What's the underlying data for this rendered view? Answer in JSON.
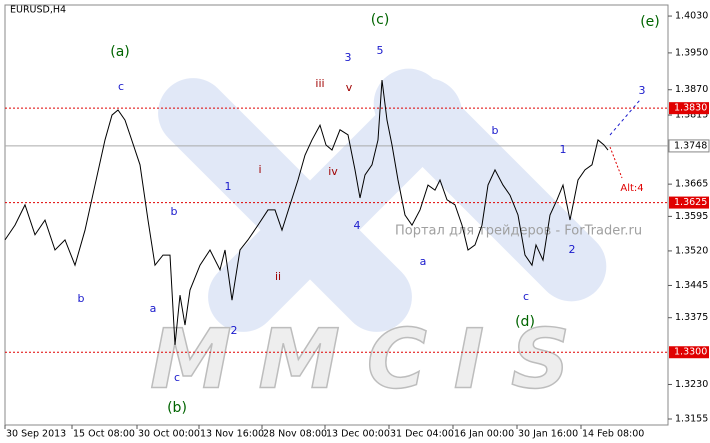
{
  "chart_data": {
    "type": "line",
    "symbol": "EURUSD,H4",
    "series": [
      {
        "color": "#000000",
        "x": [
          0,
          2,
          4,
          6,
          8,
          10,
          12,
          14,
          16,
          18,
          20,
          21.4,
          22.6,
          24,
          25,
          27,
          28.6,
          30,
          31.6,
          33,
          34,
          35,
          36,
          37,
          39,
          41,
          43,
          44,
          45.4,
          47,
          48.6,
          50.6,
          52.6,
          54,
          55.4,
          57,
          58.6,
          60,
          61.4,
          63,
          64.2,
          65.4,
          67,
          68.6,
          70,
          71,
          72,
          73.4,
          74.6,
          75.4,
          76.4,
          77.4,
          78.6,
          80,
          81.4,
          83,
          84.6,
          86,
          87,
          88.4,
          90,
          91.4,
          92.6,
          94,
          95.4,
          96.6,
          98,
          99.6,
          101,
          102.6,
          104,
          105.4,
          106.2,
          107.6,
          109,
          110.4,
          111.6,
          113,
          114.6,
          116,
          117.4,
          118.6,
          119.8,
          120.6
        ],
        "values": [
          1.3544,
          1.3576,
          1.362,
          1.3555,
          1.3587,
          1.3522,
          1.3544,
          1.3489,
          1.3565,
          1.3663,
          1.3761,
          1.3815,
          1.3826,
          1.3804,
          1.3772,
          1.3707,
          1.3587,
          1.3489,
          1.3511,
          1.3511,
          1.3316,
          1.3424,
          1.3359,
          1.3435,
          1.3489,
          1.3522,
          1.3479,
          1.3522,
          1.3413,
          1.3522,
          1.3544,
          1.3576,
          1.3609,
          1.3609,
          1.3565,
          1.362,
          1.3674,
          1.3728,
          1.3761,
          1.3793,
          1.375,
          1.3739,
          1.3783,
          1.3772,
          1.3696,
          1.3635,
          1.3685,
          1.3707,
          1.3761,
          1.3891,
          1.3804,
          1.375,
          1.3674,
          1.3598,
          1.3576,
          1.3609,
          1.3663,
          1.3652,
          1.3674,
          1.3631,
          1.362,
          1.3576,
          1.3522,
          1.3533,
          1.3576,
          1.3663,
          1.3696,
          1.3663,
          1.3641,
          1.3598,
          1.3511,
          1.3489,
          1.3533,
          1.35,
          1.3598,
          1.3631,
          1.3663,
          1.3587,
          1.3674,
          1.3696,
          1.3707,
          1.3761,
          1.375,
          1.3739
        ]
      }
    ],
    "xlim": [
      0,
      132.6
    ],
    "ylim": [
      1.3142,
      1.4054
    ],
    "xticks": [
      {
        "value": 0,
        "label": "30 Sep 2013"
      },
      {
        "value": 13.4,
        "label": "15 Oct 08:00"
      },
      {
        "value": 26.4,
        "label": "30 Oct 00:00"
      },
      {
        "value": 38.8,
        "label": "13 Nov 16:00"
      },
      {
        "value": 51.4,
        "label": "28 Nov 08:00"
      },
      {
        "value": 64,
        "label": "13 Dec 00:00"
      },
      {
        "value": 76.8,
        "label": "31 Dec 04:00"
      },
      {
        "value": 89.6,
        "label": "16 Jan 00:00"
      },
      {
        "value": 102.4,
        "label": "30 Jan 16:00"
      },
      {
        "value": 115.2,
        "label": "14 Feb 08:00"
      }
    ],
    "yticks": [
      {
        "value": 1.403,
        "label": "1.4030"
      },
      {
        "value": 1.395,
        "label": "1.3950"
      },
      {
        "value": 1.387,
        "label": "1.3870"
      },
      1.3815,
      1.3665,
      1.3595,
      {
        "value": 1.352,
        "label": "1.3520"
      },
      1.3445,
      1.3375,
      {
        "value": 1.323,
        "label": "1.3230"
      },
      1.3155
    ],
    "levels": [
      {
        "value": 1.383,
        "label": "1.3830"
      },
      {
        "value": 1.3625,
        "label": "1.3625"
      },
      {
        "value": 1.33,
        "label": "1.3300"
      }
    ],
    "level_color": "#e00000",
    "current": {
      "value": 1.3748,
      "label": "1.3748"
    },
    "annotations": [
      {
        "text": "(a)",
        "color": "#006400"
      },
      {
        "text": "(b)",
        "color": "#006400"
      },
      {
        "text": "(c)",
        "color": "#006400"
      },
      {
        "text": "(d)",
        "color": "#006400"
      },
      {
        "text": "(e)",
        "color": "#006400"
      },
      {
        "text": "c",
        "color": "#1a1acc"
      },
      {
        "text": "b",
        "color": "#1a1acc"
      },
      {
        "text": "a",
        "color": "#1a1acc"
      },
      {
        "text": "b",
        "color": "#1a1acc"
      },
      {
        "text": "c",
        "color": "#1a1acc"
      },
      {
        "text": "1",
        "color": "#1a1acc"
      },
      {
        "text": "2",
        "color": "#1a1acc"
      },
      {
        "text": "3",
        "color": "#1a1acc"
      },
      {
        "text": "5",
        "color": "#1a1acc"
      },
      {
        "text": "4",
        "color": "#1a1acc"
      },
      {
        "text": "a",
        "color": "#1a1acc"
      },
      {
        "text": "b",
        "color": "#1a1acc"
      },
      {
        "text": "c",
        "color": "#1a1acc"
      },
      {
        "text": "1",
        "color": "#1a1acc"
      },
      {
        "text": "2",
        "color": "#1a1acc"
      },
      {
        "text": "3",
        "color": "#1a1acc"
      },
      {
        "text": "iii",
        "color": "#a00000"
      },
      {
        "text": "v",
        "color": "#a00000"
      },
      {
        "text": "i",
        "color": "#a00000"
      },
      {
        "text": "ii",
        "color": "#a00000"
      },
      {
        "text": "iv",
        "color": "#a00000"
      },
      {
        "text": "Alt:4",
        "color": "#e00000"
      }
    ],
    "watermark": {
      "logo": "MMCIS",
      "portal": "Портал для трейдеров - ForTrader.ru"
    }
  }
}
